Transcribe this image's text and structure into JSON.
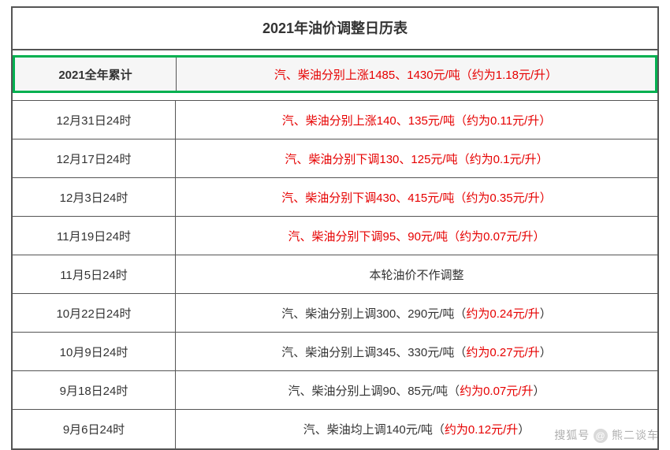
{
  "title": "2021年油价调整日历表",
  "colors": {
    "border": "#555555",
    "highlight_border": "#00b050",
    "highlight_bg": "#f6f6f6",
    "text": "#333333",
    "red": "#e60000"
  },
  "highlight_row": {
    "date": "2021全年累计",
    "desc": "汽、柴油分别上涨1485、1430元/吨（约为1.18元/升）",
    "full_red": true
  },
  "rows": [
    {
      "date": "12月31日24时",
      "prefix": "",
      "desc": "汽、柴油分别上涨140、135元/吨（约为0.11元/升）",
      "full_red": true
    },
    {
      "date": "12月17日24时",
      "prefix": "",
      "desc": "汽、柴油分别下调130、125元/吨（约为0.1元/升）",
      "full_red": true
    },
    {
      "date": "12月3日24时",
      "prefix": "",
      "desc": "汽、柴油分别下调430、415元/吨（约为0.35元/升）",
      "full_red": true
    },
    {
      "date": "11月19日24时",
      "prefix": "",
      "desc": "汽、柴油分别下调95、90元/吨（约为0.07元/升）",
      "full_red": true
    },
    {
      "date": "11月5日24时",
      "prefix": "",
      "desc": "本轮油价不作调整",
      "full_red": false,
      "no_red": true
    },
    {
      "date": "10月22日24时",
      "prefix": "汽、柴油分别上调300、290元/吨（",
      "red_part": "约为0.24元/升",
      "suffix": "）"
    },
    {
      "date": "10月9日24时",
      "prefix": "汽、柴油分别上调345、330元/吨（",
      "red_part": "约为0.27元/升",
      "suffix": "）"
    },
    {
      "date": "9月18日24时",
      "prefix": "汽、柴油分别上调90、85元/吨（",
      "red_part": "约为0.07元/升",
      "suffix": "）"
    },
    {
      "date": "9月6日24时",
      "prefix": "汽、柴油均上调140元/吨（",
      "red_part": "约为0.12元/升",
      "suffix": "）"
    }
  ],
  "watermark": {
    "label1": "搜狐号",
    "label2": "熊二谈车"
  }
}
